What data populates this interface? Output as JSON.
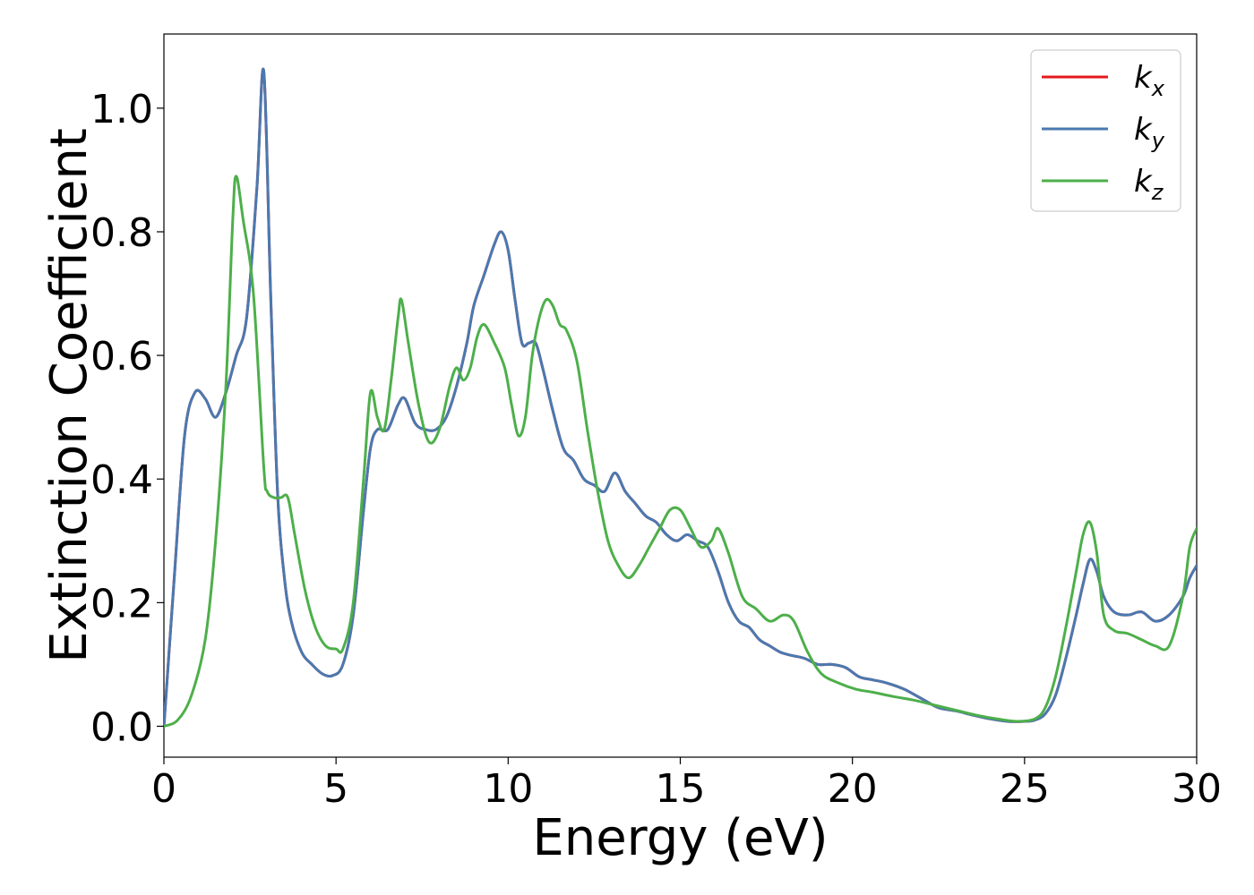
{
  "chart_data": {
    "type": "line",
    "title": "",
    "xlabel": "Energy (eV)",
    "ylabel": "Extinction Coefficient",
    "xlim": [
      0,
      30
    ],
    "ylim": [
      -0.05,
      1.12
    ],
    "x_ticks": [
      0,
      5,
      10,
      15,
      20,
      25,
      30
    ],
    "x_tick_labels": [
      "0",
      "5",
      "10",
      "15",
      "20",
      "25",
      "30"
    ],
    "y_ticks": [
      0.0,
      0.2,
      0.4,
      0.6,
      0.8,
      1.0
    ],
    "y_tick_labels": [
      "0.0",
      "0.2",
      "0.4",
      "0.6",
      "0.8",
      "1.0"
    ],
    "grid": false,
    "legend_position": "top-right",
    "series": [
      {
        "name": "k",
        "subscript": "x",
        "color": "#e41a1c",
        "x": [
          0.0,
          0.3,
          0.6,
          0.9,
          1.2,
          1.5,
          1.8,
          2.1,
          2.4,
          2.7,
          2.9,
          3.1,
          3.3,
          3.5,
          3.7,
          4.0,
          4.3,
          4.6,
          4.9,
          5.2,
          5.5,
          5.8,
          6.0,
          6.2,
          6.5,
          6.8,
          7.0,
          7.3,
          7.6,
          7.9,
          8.2,
          8.5,
          8.8,
          9.0,
          9.3,
          9.6,
          9.8,
          10.0,
          10.2,
          10.4,
          10.6,
          10.8,
          11.0,
          11.3,
          11.6,
          11.9,
          12.2,
          12.5,
          12.8,
          13.1,
          13.4,
          13.7,
          14.0,
          14.3,
          14.6,
          14.9,
          15.2,
          15.5,
          15.8,
          16.1,
          16.4,
          16.7,
          17.0,
          17.3,
          17.6,
          17.9,
          18.2,
          18.6,
          19.0,
          19.4,
          19.8,
          20.2,
          20.6,
          21.0,
          21.5,
          22.0,
          22.5,
          23.0,
          23.5,
          24.0,
          24.5,
          25.0,
          25.3,
          25.6,
          25.9,
          26.2,
          26.5,
          26.7,
          26.9,
          27.1,
          27.3,
          27.6,
          28.0,
          28.4,
          28.8,
          29.2,
          29.6,
          29.8,
          30.0
        ],
        "values": [
          0.0,
          0.24,
          0.47,
          0.54,
          0.53,
          0.5,
          0.54,
          0.6,
          0.66,
          0.87,
          1.06,
          0.7,
          0.38,
          0.24,
          0.17,
          0.12,
          0.1,
          0.085,
          0.082,
          0.1,
          0.18,
          0.35,
          0.45,
          0.48,
          0.48,
          0.52,
          0.53,
          0.49,
          0.48,
          0.48,
          0.5,
          0.55,
          0.62,
          0.68,
          0.73,
          0.78,
          0.8,
          0.77,
          0.69,
          0.62,
          0.62,
          0.62,
          0.58,
          0.51,
          0.45,
          0.43,
          0.4,
          0.39,
          0.38,
          0.41,
          0.38,
          0.36,
          0.34,
          0.33,
          0.31,
          0.3,
          0.31,
          0.3,
          0.29,
          0.25,
          0.2,
          0.17,
          0.16,
          0.14,
          0.13,
          0.12,
          0.115,
          0.11,
          0.1,
          0.1,
          0.095,
          0.08,
          0.075,
          0.07,
          0.06,
          0.045,
          0.03,
          0.025,
          0.018,
          0.012,
          0.008,
          0.008,
          0.01,
          0.02,
          0.05,
          0.11,
          0.18,
          0.23,
          0.27,
          0.25,
          0.21,
          0.185,
          0.18,
          0.185,
          0.17,
          0.18,
          0.21,
          0.24,
          0.26
        ]
      },
      {
        "name": "k",
        "subscript": "y",
        "color": "#4a79b0",
        "x": [
          0.0,
          0.3,
          0.6,
          0.9,
          1.2,
          1.5,
          1.8,
          2.1,
          2.4,
          2.7,
          2.9,
          3.1,
          3.3,
          3.5,
          3.7,
          4.0,
          4.3,
          4.6,
          4.9,
          5.2,
          5.5,
          5.8,
          6.0,
          6.2,
          6.5,
          6.8,
          7.0,
          7.3,
          7.6,
          7.9,
          8.2,
          8.5,
          8.8,
          9.0,
          9.3,
          9.6,
          9.8,
          10.0,
          10.2,
          10.4,
          10.6,
          10.8,
          11.0,
          11.3,
          11.6,
          11.9,
          12.2,
          12.5,
          12.8,
          13.1,
          13.4,
          13.7,
          14.0,
          14.3,
          14.6,
          14.9,
          15.2,
          15.5,
          15.8,
          16.1,
          16.4,
          16.7,
          17.0,
          17.3,
          17.6,
          17.9,
          18.2,
          18.6,
          19.0,
          19.4,
          19.8,
          20.2,
          20.6,
          21.0,
          21.5,
          22.0,
          22.5,
          23.0,
          23.5,
          24.0,
          24.5,
          25.0,
          25.3,
          25.6,
          25.9,
          26.2,
          26.5,
          26.7,
          26.9,
          27.1,
          27.3,
          27.6,
          28.0,
          28.4,
          28.8,
          29.2,
          29.6,
          29.8,
          30.0
        ],
        "values": [
          0.0,
          0.24,
          0.47,
          0.54,
          0.53,
          0.5,
          0.54,
          0.6,
          0.66,
          0.87,
          1.06,
          0.7,
          0.38,
          0.24,
          0.17,
          0.12,
          0.1,
          0.085,
          0.082,
          0.1,
          0.18,
          0.35,
          0.45,
          0.48,
          0.48,
          0.52,
          0.53,
          0.49,
          0.48,
          0.48,
          0.5,
          0.55,
          0.62,
          0.68,
          0.73,
          0.78,
          0.8,
          0.77,
          0.69,
          0.62,
          0.62,
          0.62,
          0.58,
          0.51,
          0.45,
          0.43,
          0.4,
          0.39,
          0.38,
          0.41,
          0.38,
          0.36,
          0.34,
          0.33,
          0.31,
          0.3,
          0.31,
          0.3,
          0.29,
          0.25,
          0.2,
          0.17,
          0.16,
          0.14,
          0.13,
          0.12,
          0.115,
          0.11,
          0.1,
          0.1,
          0.095,
          0.08,
          0.075,
          0.07,
          0.06,
          0.045,
          0.03,
          0.025,
          0.018,
          0.012,
          0.008,
          0.008,
          0.01,
          0.02,
          0.05,
          0.11,
          0.18,
          0.23,
          0.27,
          0.25,
          0.21,
          0.185,
          0.18,
          0.185,
          0.17,
          0.18,
          0.21,
          0.24,
          0.26
        ]
      },
      {
        "name": "k",
        "subscript": "z",
        "color": "#4daf4a",
        "x": [
          0.0,
          0.4,
          0.8,
          1.2,
          1.5,
          1.8,
          2.0,
          2.1,
          2.3,
          2.6,
          2.9,
          3.0,
          3.2,
          3.4,
          3.6,
          3.8,
          4.1,
          4.4,
          4.7,
          5.0,
          5.2,
          5.5,
          5.8,
          6.0,
          6.2,
          6.4,
          6.6,
          6.8,
          6.9,
          7.1,
          7.4,
          7.7,
          8.0,
          8.3,
          8.5,
          8.7,
          8.9,
          9.1,
          9.3,
          9.6,
          9.9,
          10.1,
          10.3,
          10.5,
          10.7,
          10.9,
          11.1,
          11.3,
          11.5,
          11.7,
          12.0,
          12.3,
          12.6,
          12.9,
          13.2,
          13.5,
          13.8,
          14.1,
          14.4,
          14.7,
          15.0,
          15.3,
          15.6,
          15.9,
          16.1,
          16.4,
          16.8,
          17.2,
          17.6,
          18.0,
          18.3,
          18.7,
          19.1,
          19.6,
          20.1,
          20.6,
          21.2,
          21.8,
          22.4,
          23.0,
          23.6,
          24.2,
          24.8,
          25.3,
          25.6,
          25.9,
          26.2,
          26.5,
          26.7,
          26.9,
          27.1,
          27.3,
          27.6,
          28.0,
          28.4,
          28.8,
          29.2,
          29.6,
          29.8,
          30.0
        ],
        "values": [
          0.0,
          0.01,
          0.05,
          0.14,
          0.3,
          0.55,
          0.82,
          0.89,
          0.82,
          0.7,
          0.42,
          0.38,
          0.37,
          0.37,
          0.37,
          0.31,
          0.22,
          0.16,
          0.13,
          0.125,
          0.125,
          0.2,
          0.4,
          0.54,
          0.5,
          0.48,
          0.56,
          0.66,
          0.69,
          0.62,
          0.52,
          0.46,
          0.48,
          0.55,
          0.58,
          0.56,
          0.58,
          0.63,
          0.65,
          0.62,
          0.58,
          0.52,
          0.47,
          0.5,
          0.6,
          0.66,
          0.69,
          0.68,
          0.65,
          0.64,
          0.59,
          0.48,
          0.38,
          0.3,
          0.26,
          0.24,
          0.26,
          0.29,
          0.32,
          0.35,
          0.35,
          0.32,
          0.29,
          0.3,
          0.32,
          0.28,
          0.21,
          0.19,
          0.17,
          0.18,
          0.17,
          0.12,
          0.085,
          0.07,
          0.06,
          0.055,
          0.048,
          0.042,
          0.034,
          0.026,
          0.018,
          0.012,
          0.008,
          0.012,
          0.03,
          0.08,
          0.16,
          0.25,
          0.31,
          0.33,
          0.28,
          0.18,
          0.155,
          0.15,
          0.14,
          0.13,
          0.13,
          0.21,
          0.29,
          0.32
        ]
      }
    ]
  }
}
